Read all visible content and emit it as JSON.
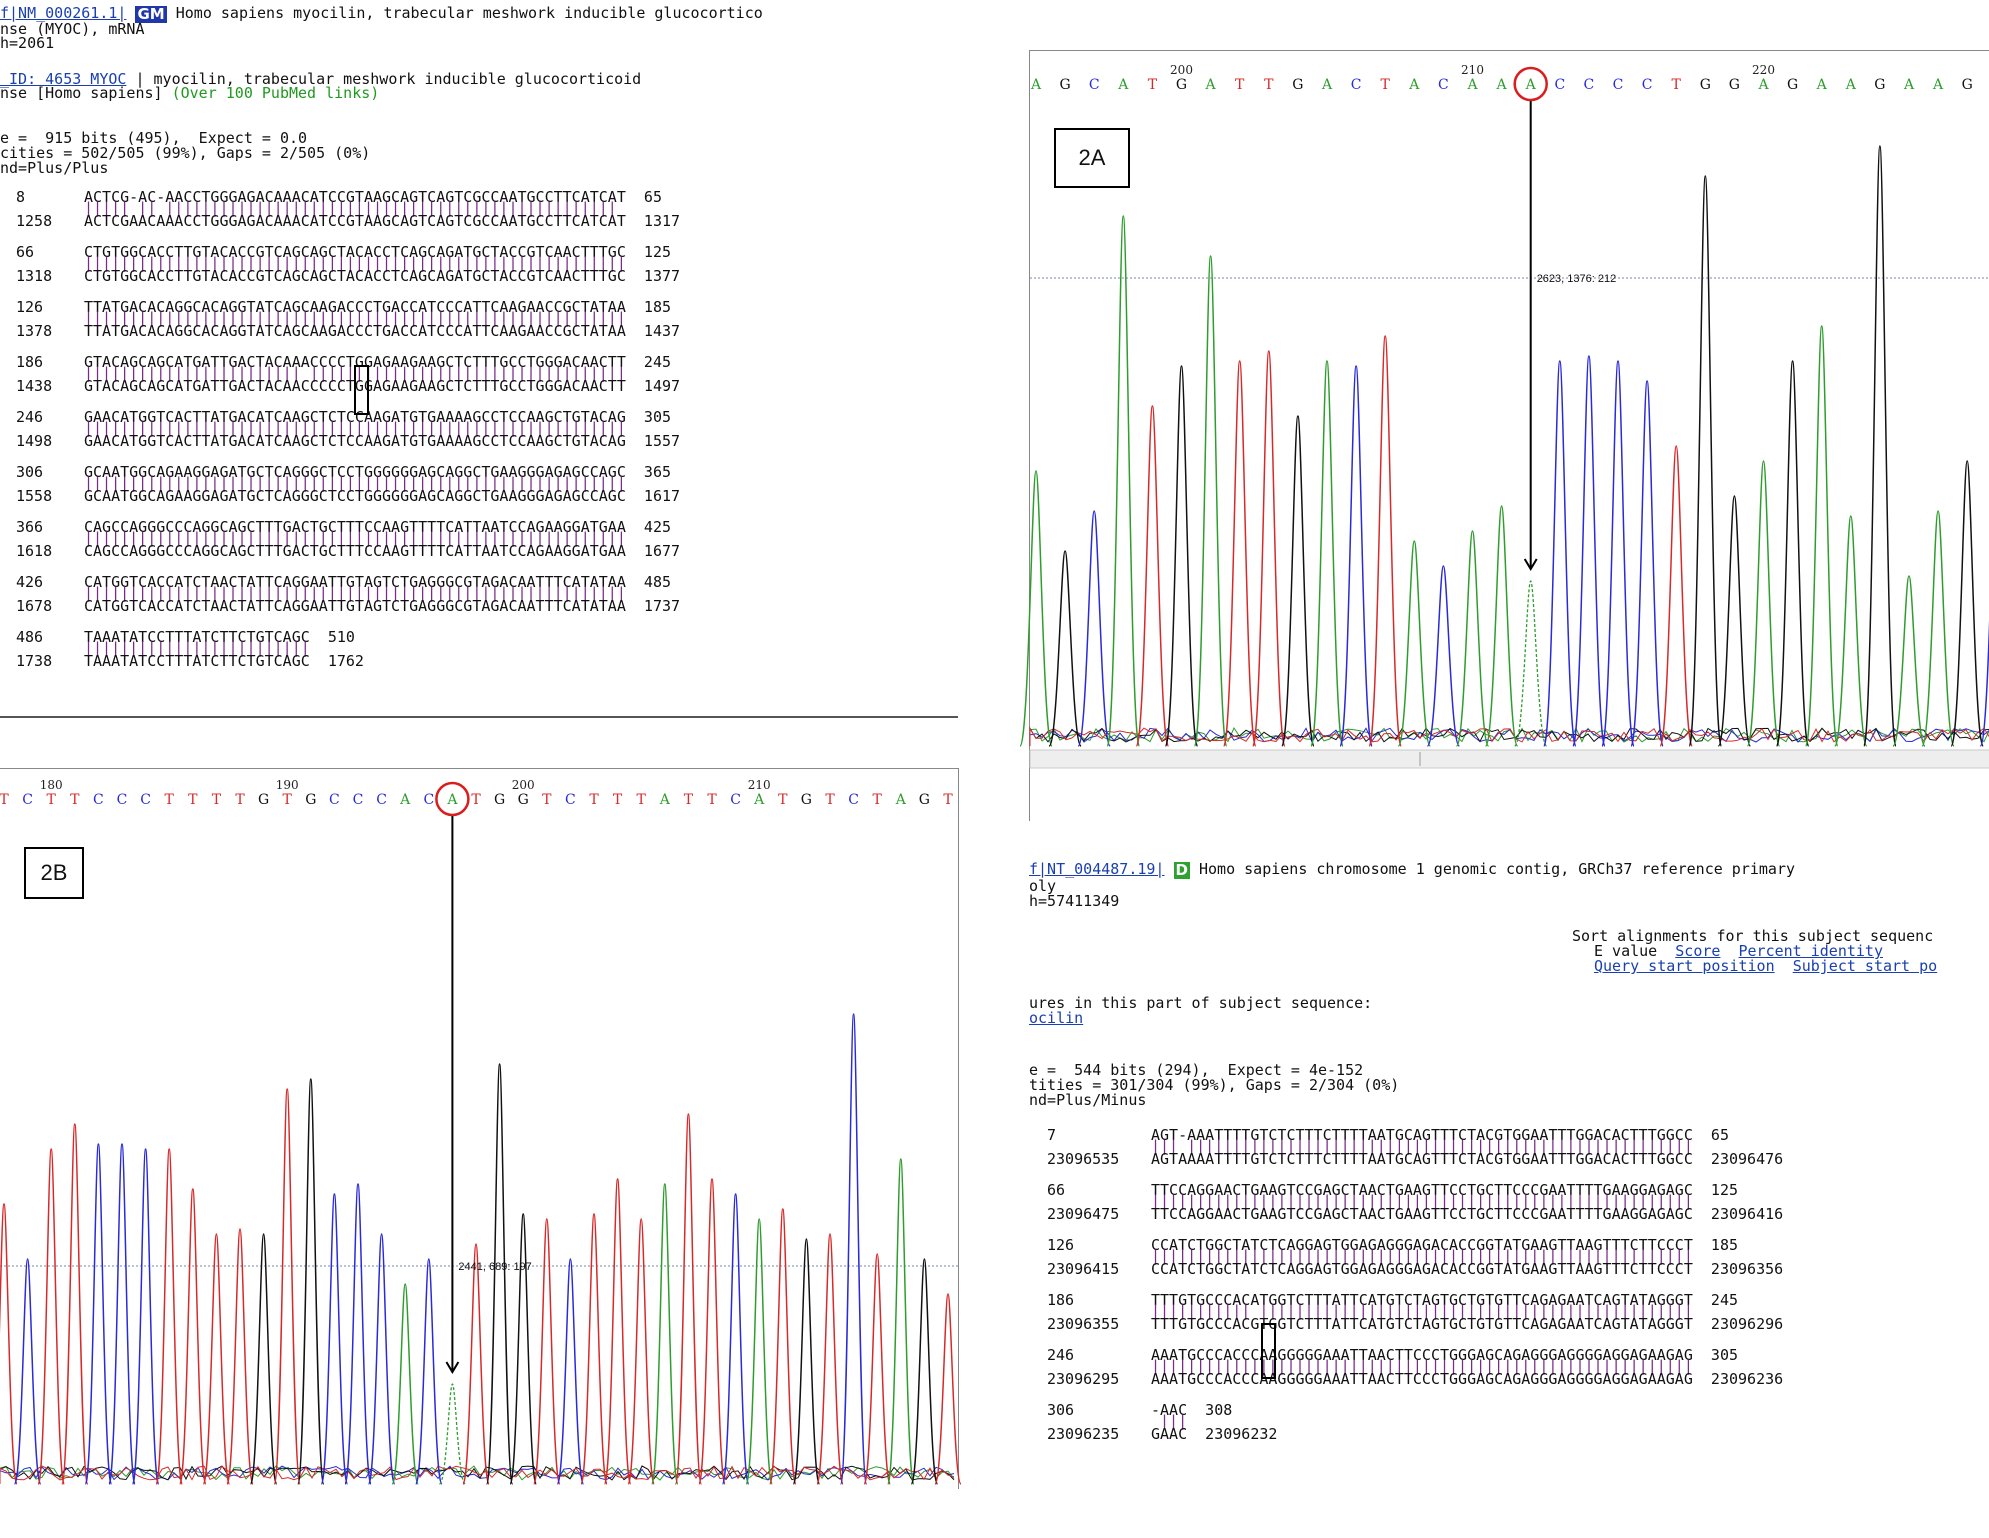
{
  "blast_top": {
    "accession": "f|NM_000261.1|",
    "badge": "GM",
    "title": " Homo sapiens myocilin, trabecular meshwork inducible glucocortico",
    "line2": "nse (MYOC), mRNA",
    "line3": "h=2061",
    "gene_link": "_ID: 4653 MYOC",
    "gene_desc": " | myocilin, trabecular meshwork inducible glucocorticoid",
    "gene_line2": "nse [Homo sapiens] ",
    "pubmed": "(Over 100 PubMed links)",
    "score": "e =  915 bits (495),  Expect = 0.0",
    "identities": "cities = 502/505 (99%), Gaps = 2/505 (0%)",
    "strand": "nd=Plus/Plus",
    "alignment": [
      {
        "q_start": "8",
        "query": "ACTCG-AC-AACCTGGGAGACAAACATCCGTAAGCAGTCAGTCGCCAATGCCTTCATCAT",
        "q_end": "65",
        "match": "||||| || ||||||||||||||||||||||||||||||||||||||||||||||||||",
        "s_start": "1258",
        "sbjct": "ACTCGAACAAACCTGGGAGACAAACATCCGTAAGCAGTCAGTCGCCAATGCCTTCATCAT",
        "s_end": "1317"
      },
      {
        "q_start": "66",
        "query": "CTGTGGCACCTTGTACACCGTCAGCAGCTACACCTCAGCAGATGCTACCGTCAACTTTGC",
        "q_end": "125",
        "match": "||||||||||||||||||||||||||||||||||||||||||||||||||||||||||||",
        "s_start": "1318",
        "sbjct": "CTGTGGCACCTTGTACACCGTCAGCAGCTACACCTCAGCAGATGCTACCGTCAACTTTGC",
        "s_end": "1377"
      },
      {
        "q_start": "126",
        "query": "TTATGACACAGGCACAGGTATCAGCAAGACCCTGACCATCCCATTCAAGAACCGCTATAA",
        "q_end": "185",
        "match": "||||||||||||||||||||||||||||||||||||||||||||||||||||||||||||",
        "s_start": "1378",
        "sbjct": "TTATGACACAGGCACAGGTATCAGCAAGACCCTGACCATCCCATTCAAGAACCGCTATAA",
        "s_end": "1437"
      },
      {
        "q_start": "186",
        "query": "GTACAGCAGCATGATTGACTACAAACCCCTGGAGAAGAAGCTCTTTGCCTGGGACAACTT",
        "q_end": "245",
        "match": "|||||||||||||||||||||||| |||||||||||||||||||||||||||||||||||",
        "s_start": "1438",
        "sbjct": "GTACAGCAGCATGATTGACTACAACCCCCTGGAGAAGAAGCTCTTTGCCTGGGACAACTT",
        "s_end": "1497"
      },
      {
        "q_start": "246",
        "query": "GAACATGGTCACTTATGACATCAAGCTCTCCAAGATGTGAAAAGCCTCCAAGCTGTACAG",
        "q_end": "305",
        "match": "||||||||||||||||||||||||||||||||||||||||||||||||||||||||||||",
        "s_start": "1498",
        "sbjct": "GAACATGGTCACTTATGACATCAAGCTCTCCAAGATGTGAAAAGCCTCCAAGCTGTACAG",
        "s_end": "1557"
      },
      {
        "q_start": "306",
        "query": "GCAATGGCAGAAGGAGATGCTCAGGGCTCCTGGGGGGAGCAGGCTGAAGGGAGAGCCAGC",
        "q_end": "365",
        "match": "||||||||||||||||||||||||||||||||||||||||||||||||||||||||||||",
        "s_start": "1558",
        "sbjct": "GCAATGGCAGAAGGAGATGCTCAGGGCTCCTGGGGGGAGCAGGCTGAAGGGAGAGCCAGC",
        "s_end": "1617"
      },
      {
        "q_start": "366",
        "query": "CAGCCAGGGCCCAGGCAGCTTTGACTGCTTTCCAAGTTTTCATTAATCCAGAAGGATGAA",
        "q_end": "425",
        "match": "||||||||||||||||||||||||||||||||||||||||||||||||||||||||||||",
        "s_start": "1618",
        "sbjct": "CAGCCAGGGCCCAGGCAGCTTTGACTGCTTTCCAAGTTTTCATTAATCCAGAAGGATGAA",
        "s_end": "1677"
      },
      {
        "q_start": "426",
        "query": "CATGGTCACCATCTAACTATTCAGGAATTGTAGTCTGAGGGCGTAGACAATTTCATATAA",
        "q_end": "485",
        "match": "||||||||||||||||||||||||||||||||||||||||||||||||||||||||||||",
        "s_start": "1678",
        "sbjct": "CATGGTCACCATCTAACTATTCAGGAATTGTAGTCTGAGGGCGTAGACAATTTCATATAA",
        "s_end": "1737"
      },
      {
        "q_start": "486",
        "query": "TAAATATCCTTTATCTTCTGTCAGC",
        "q_end": "510",
        "match": "|||||||||||||||||||||||||",
        "s_start": "1738",
        "sbjct": "TAAATATCCTTTATCTTCTGTCAGC",
        "s_end": "1762"
      }
    ]
  },
  "blast_bottom": {
    "accession": "f|NT_004487.19|",
    "badge": "D",
    "title": " Homo sapiens chromosome 1 genomic contig, GRCh37 reference primary",
    "line2": "oly",
    "line3": "h=57411349",
    "sort_label": "Sort alignments for this subject sequenc",
    "sort_evalue": "E value",
    "sort_score": "Score",
    "sort_percent": "Percent identity",
    "sort_query_start": "Query start position",
    "sort_subject_start": "Subject start po",
    "features_label": "ures in this part of subject sequence:",
    "features_link": "ocilin",
    "score": "e =  544 bits (294),  Expect = 4e-152",
    "identities": "tities = 301/304 (99%), Gaps = 2/304 (0%)",
    "strand": "nd=Plus/Minus",
    "alignment": [
      {
        "q_start": "7",
        "query": "AGT-AAATTTTGTCTCTTTCTTTTAATGCAGTTTCTACGTGGAATTTGGACACTTTGGCC",
        "q_end": "65",
        "match": "||| ||||||||||||||||||||||||||||||||||||||||||||||||||||||||",
        "s_start": "23096535",
        "sbjct": "AGTAAAATTTTGTCTCTTTCTTTTAATGCAGTTTCTACGTGGAATTTGGACACTTTGGCC",
        "s_end": "23096476"
      },
      {
        "q_start": "66",
        "query": "TTCCAGGAACTGAAGTCCGAGCTAACTGAAGTTCCTGCTTCCCGAATTTTGAAGGAGAGC",
        "q_end": "125",
        "match": "||||||||||||||||||||||||||||||||||||||||||||||||||||||||||||",
        "s_start": "23096475",
        "sbjct": "TTCCAGGAACTGAAGTCCGAGCTAACTGAAGTTCCTGCTTCCCGAATTTTGAAGGAGAGC",
        "s_end": "23096416"
      },
      {
        "q_start": "126",
        "query": "CCATCTGGCTATCTCAGGAGTGGAGAGGGAGACACCGGTATGAAGTTAAGTTTCTTCCCT",
        "q_end": "185",
        "match": "||||||||||||||||||||||||||||||||||||||||||||||||||||||||||||",
        "s_start": "23096415",
        "sbjct": "CCATCTGGCTATCTCAGGAGTGGAGAGGGAGACACCGGTATGAAGTTAAGTTTCTTCCCT",
        "s_end": "23096356"
      },
      {
        "q_start": "186",
        "query": "TTTGTGCCCACATGGTCTTTATTCATGTCTAGTGCTGTGTTCAGAGAATCAGTATAGGGT",
        "q_end": "245",
        "match": "||||||||||| ||||||||||||||||||||||||||||||||||||||||||||||||",
        "s_start": "23096355",
        "sbjct": "TTTGTGCCCACGTGGTCTTTATTCATGTCTAGTGCTGTGTTCAGAGAATCAGTATAGGGT",
        "s_end": "23096296"
      },
      {
        "q_start": "246",
        "query": "AAATGCCCACCCAAGGGGGAAATTAACTTCCCTGGGAGCAGAGGGAGGGGAGGAGAAGAG",
        "q_end": "305",
        "match": "||||||||||||||||||||||||||||||||||||||||||||||||||||||||||||",
        "s_start": "23096295",
        "sbjct": "AAATGCCCACCCAAGGGGGAAATTAACTTCCCTGGGAGCAGAGGGAGGGGAGGAGAAGAG",
        "s_end": "23096236"
      },
      {
        "q_start": "306",
        "query": "-AAC",
        "q_end": "308",
        "match": " |||",
        "s_start": "23096235",
        "sbjct": "GAAC",
        "s_end": "23096232"
      }
    ]
  },
  "chrom_a": {
    "label": "2A",
    "bases": "AGCATGATTGACTACAAACCCCTGGAGAAGAAGC",
    "tick_labels": [
      "200",
      "210",
      "220"
    ],
    "readout": "2623, 1376: 212",
    "colors": {
      "A": "#2e9d2e",
      "C": "#2a2ad6",
      "G": "#111111",
      "T": "#d62a2a"
    },
    "highlight_index": 17
  },
  "chrom_b": {
    "label": "2B",
    "bases": "TCTTCCCTTTTGTGCCCACATGGTCTTTATTCATGTCTAGT",
    "tick_labels": [
      "180",
      "190",
      "200",
      "210"
    ],
    "readout": "2441, 689: 197",
    "colors": {
      "A": "#2e9d2e",
      "C": "#2a2ad6",
      "G": "#111111",
      "T": "#d62a2a"
    },
    "highlight_index": 19
  }
}
